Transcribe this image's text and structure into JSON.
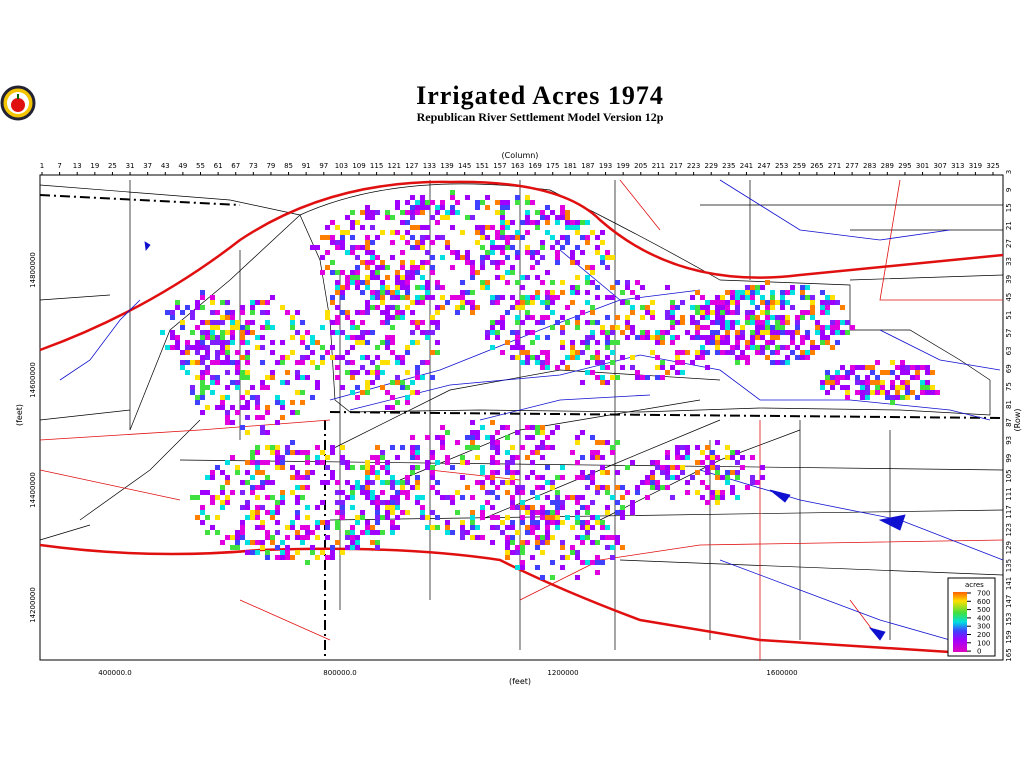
{
  "header": {
    "title": "Irrigated Acres 1974",
    "subtitle": "Republican River Settlement Model Version 12p"
  },
  "axes": {
    "column_title": "(Column)",
    "row_title": "(Row)",
    "y_title": "(feet)",
    "x_title": "(feet)",
    "columns": [
      1,
      7,
      13,
      19,
      25,
      31,
      37,
      43,
      49,
      55,
      61,
      67,
      73,
      79,
      85,
      91,
      97,
      103,
      109,
      115,
      121,
      127,
      133,
      139,
      145,
      151,
      157,
      163,
      169,
      175,
      181,
      187,
      193,
      199,
      205,
      211,
      217,
      223,
      229,
      235,
      241,
      247,
      253,
      259,
      265,
      271,
      277,
      283,
      289,
      295,
      301,
      307,
      313,
      319,
      325
    ],
    "rows": [
      3,
      9,
      15,
      21,
      27,
      33,
      39,
      45,
      51,
      57,
      63,
      69,
      75,
      81,
      87,
      93,
      99,
      105,
      111,
      117,
      123,
      129,
      135,
      141,
      147,
      153,
      159,
      165
    ],
    "y_labels": [
      "14800000",
      "14600000",
      "14400000",
      "14200000"
    ],
    "x_labels": [
      "400000.0",
      "800000.0",
      "1200000",
      "1600000"
    ]
  },
  "legend": {
    "title": "acres",
    "labels": [
      "700",
      "600",
      "500",
      "400",
      "300",
      "200",
      "100",
      "0"
    ]
  }
}
